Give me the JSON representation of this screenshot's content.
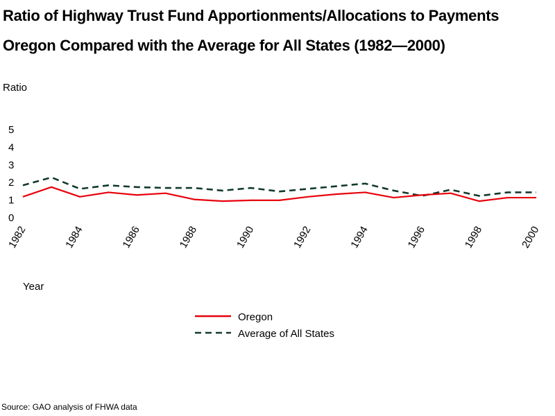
{
  "chart_data": {
    "type": "line",
    "title": "Ratio of Highway Trust Fund Apportionments/Allocations to Payments",
    "subtitle": "Oregon Compared with the Average for All States (1982—2000)",
    "xlabel": "Year",
    "ylabel": "Ratio",
    "x": [
      1982,
      1983,
      1984,
      1985,
      1986,
      1987,
      1988,
      1989,
      1990,
      1991,
      1992,
      1993,
      1994,
      1995,
      1996,
      1997,
      1998,
      1999,
      2000
    ],
    "x_tick_labels": [
      "1982",
      "1984",
      "1986",
      "1988",
      "1990",
      "1992",
      "1994",
      "1996",
      "1998",
      "2000"
    ],
    "x_ticks": [
      1982,
      1984,
      1986,
      1988,
      1990,
      1992,
      1994,
      1996,
      1998,
      2000
    ],
    "y_tick_labels": [
      "0",
      "1",
      "2",
      "3",
      "4",
      "5"
    ],
    "y_ticks": [
      0,
      1,
      2,
      3,
      4,
      5
    ],
    "ylim": [
      0,
      5
    ],
    "xlim": [
      1982,
      2000
    ],
    "grid": false,
    "legend_position": "bottom-center",
    "series": [
      {
        "name": "Oregon",
        "color": "#e8000b",
        "style": "solid",
        "values": [
          1.15,
          1.7,
          1.15,
          1.4,
          1.25,
          1.35,
          1.0,
          0.9,
          0.95,
          0.95,
          1.15,
          1.3,
          1.4,
          1.1,
          1.25,
          1.35,
          0.9,
          1.1,
          1.1
        ]
      },
      {
        "name": "Average of All States",
        "color": "#123a2a",
        "style": "dashed",
        "values": [
          1.8,
          2.25,
          1.6,
          1.8,
          1.7,
          1.65,
          1.65,
          1.5,
          1.65,
          1.45,
          1.6,
          1.75,
          1.9,
          1.5,
          1.2,
          1.55,
          1.2,
          1.4,
          1.4
        ]
      }
    ]
  },
  "source": "Source: GAO analysis of FHWA data"
}
